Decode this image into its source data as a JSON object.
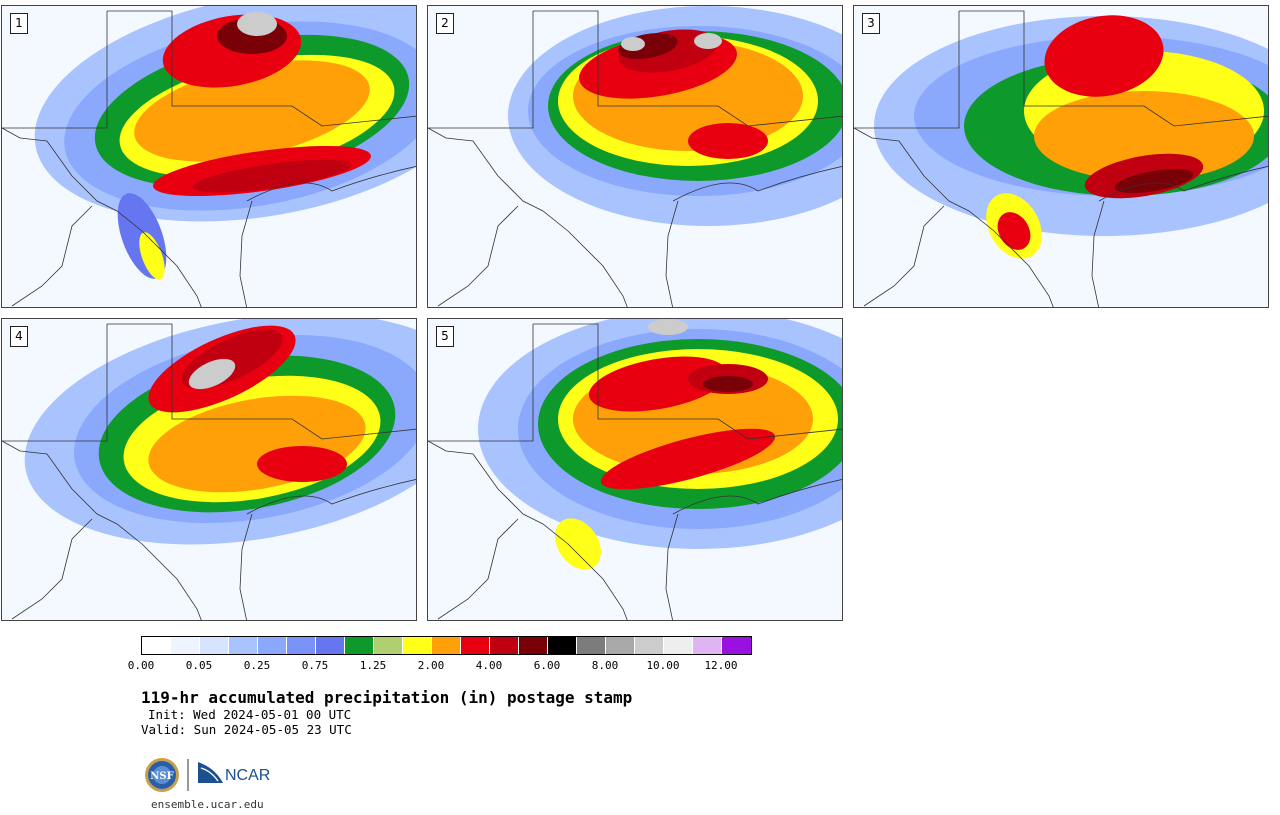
{
  "panels": [
    {
      "label": "1"
    },
    {
      "label": "2"
    },
    {
      "label": "3"
    },
    {
      "label": "4"
    },
    {
      "label": "5"
    }
  ],
  "colorbar": {
    "colors": [
      "#ffffff",
      "#eef5ff",
      "#d6e4ff",
      "#a9c3ff",
      "#8aa8fc",
      "#7a92f6",
      "#6675f0",
      "#0e9a2a",
      "#b0d070",
      "#ffff18",
      "#ffa008",
      "#e80010",
      "#c00010",
      "#7a0008",
      "#000000",
      "#7c7c7c",
      "#a8a8a8",
      "#cccccc",
      "#eeeeee",
      "#e0b4f4",
      "#9a10e0"
    ],
    "ticks": [
      "0.00",
      "0.05",
      "0.25",
      "0.75",
      "1.25",
      "2.00",
      "4.00",
      "6.00",
      "8.00",
      "10.00",
      "12.00"
    ]
  },
  "title": "119-hr accumulated precipitation (in) postage stamp",
  "init": "Init: Wed 2024-05-01 00 UTC",
  "valid": "Valid: Sun 2024-05-05 23 UTC",
  "logos": {
    "nsf": "NSF",
    "ncar": "NCAR"
  },
  "site": "ensemble.ucar.edu"
}
